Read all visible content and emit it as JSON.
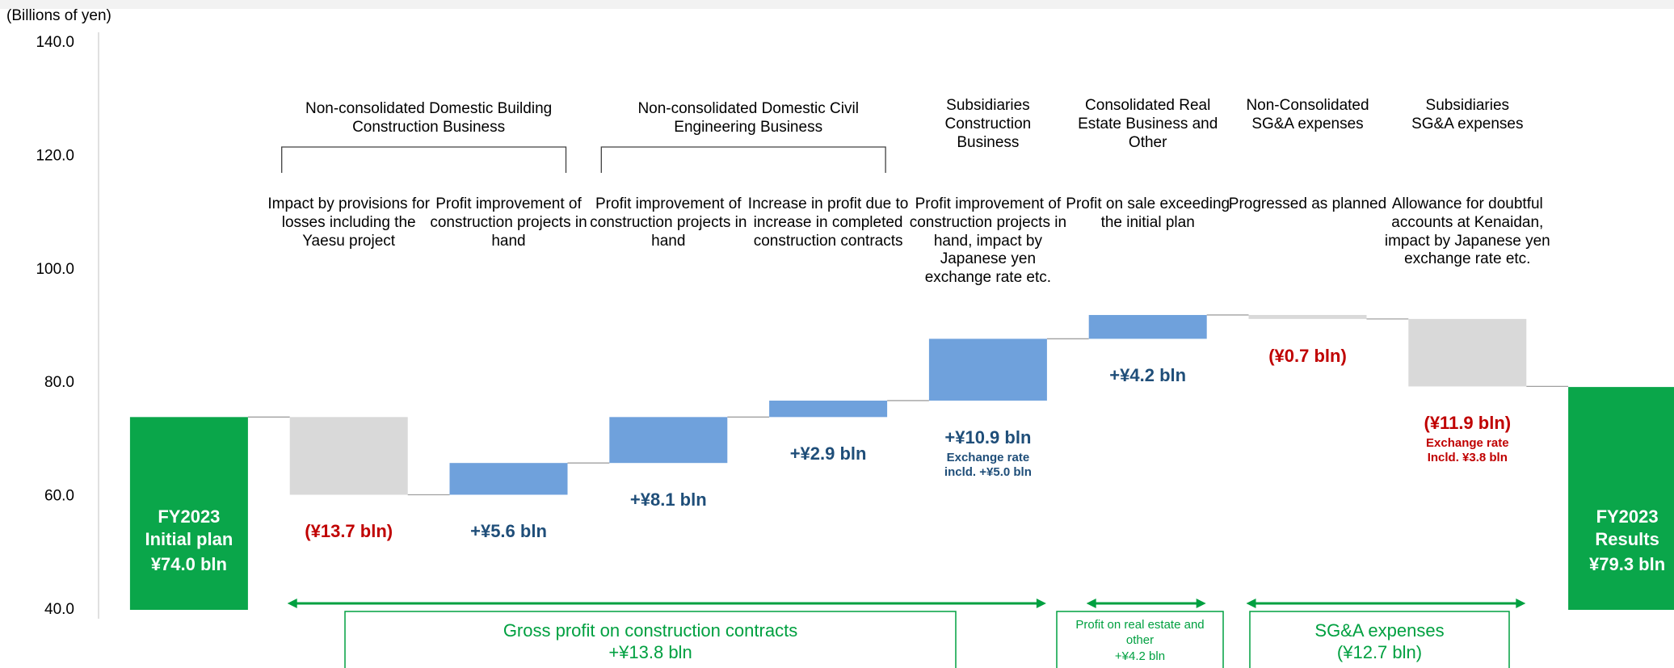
{
  "chart_data": {
    "type": "waterfall",
    "y_label": "(Billions of yen)",
    "ylim": [
      40,
      140
    ],
    "yticks": [
      {
        "value": 40,
        "label": "40.0"
      },
      {
        "value": 60,
        "label": "60.0"
      },
      {
        "value": 80,
        "label": "80.0"
      },
      {
        "value": 100,
        "label": "100.0"
      },
      {
        "value": 120,
        "label": "120.0"
      },
      {
        "value": 140,
        "label": "140.0"
      }
    ],
    "categories": [
      "FY2023 Initial plan",
      "Impact by provisions for losses including the Yaesu project",
      "Profit improvement of construction projects in hand",
      "Profit improvement of construction projects in hand",
      "Increase in profit due to increase in completed construction contracts",
      "Profit improvement of construction projects in hand, impact by Japanese yen exchange rate etc.",
      "Profit on sale exceeding the initial plan",
      "Progressed as planned",
      "Allowance for doubtful accounts at Kenaidan, impact by Japanese yen exchange rate etc.",
      "FY2023 Results"
    ],
    "values": [
      74.0,
      -13.7,
      5.6,
      8.1,
      2.9,
      10.9,
      4.2,
      -0.7,
      -11.9,
      79.3
    ],
    "value_labels": [
      "¥74.0 bln",
      "(¥13.7 bln)",
      "+¥5.6 bln",
      "+¥8.1 bln",
      "+¥2.9 bln",
      "+¥10.9 bln",
      "+¥4.2 bln",
      "(¥0.7 bln)",
      "(¥11.9 bln)",
      "¥79.3 bln"
    ],
    "annotations": [
      "Exchange rate incld. +¥5.0 bln",
      "Exchange rate Incld. ¥3.8 bln"
    ],
    "headers": [
      "Non-consolidated Domestic Building Construction Business",
      "Non-consolidated Domestic Civil Engineering Business",
      "Subsidiaries Construction Business",
      "Consolidated Real Estate Business and Other",
      "Non-Consolidated SG&A expenses",
      "Subsidiaries SG&A expenses"
    ],
    "summary_groups": [
      {
        "label": "Gross profit on construction contracts",
        "value_label": "+¥13.8 bln"
      },
      {
        "label": "Profit on real estate and other",
        "value_label": "+¥4.2 bln"
      },
      {
        "label": "SG&A expenses",
        "value_label": "(¥12.7 bln)"
      }
    ],
    "colors": {
      "total": "#0aa64a",
      "increase": "#6fa1dc",
      "decrease": "#d9d9d9",
      "increase_label": "#1f4e79",
      "decrease_label": "#c00000",
      "summary": "#00a040"
    }
  }
}
